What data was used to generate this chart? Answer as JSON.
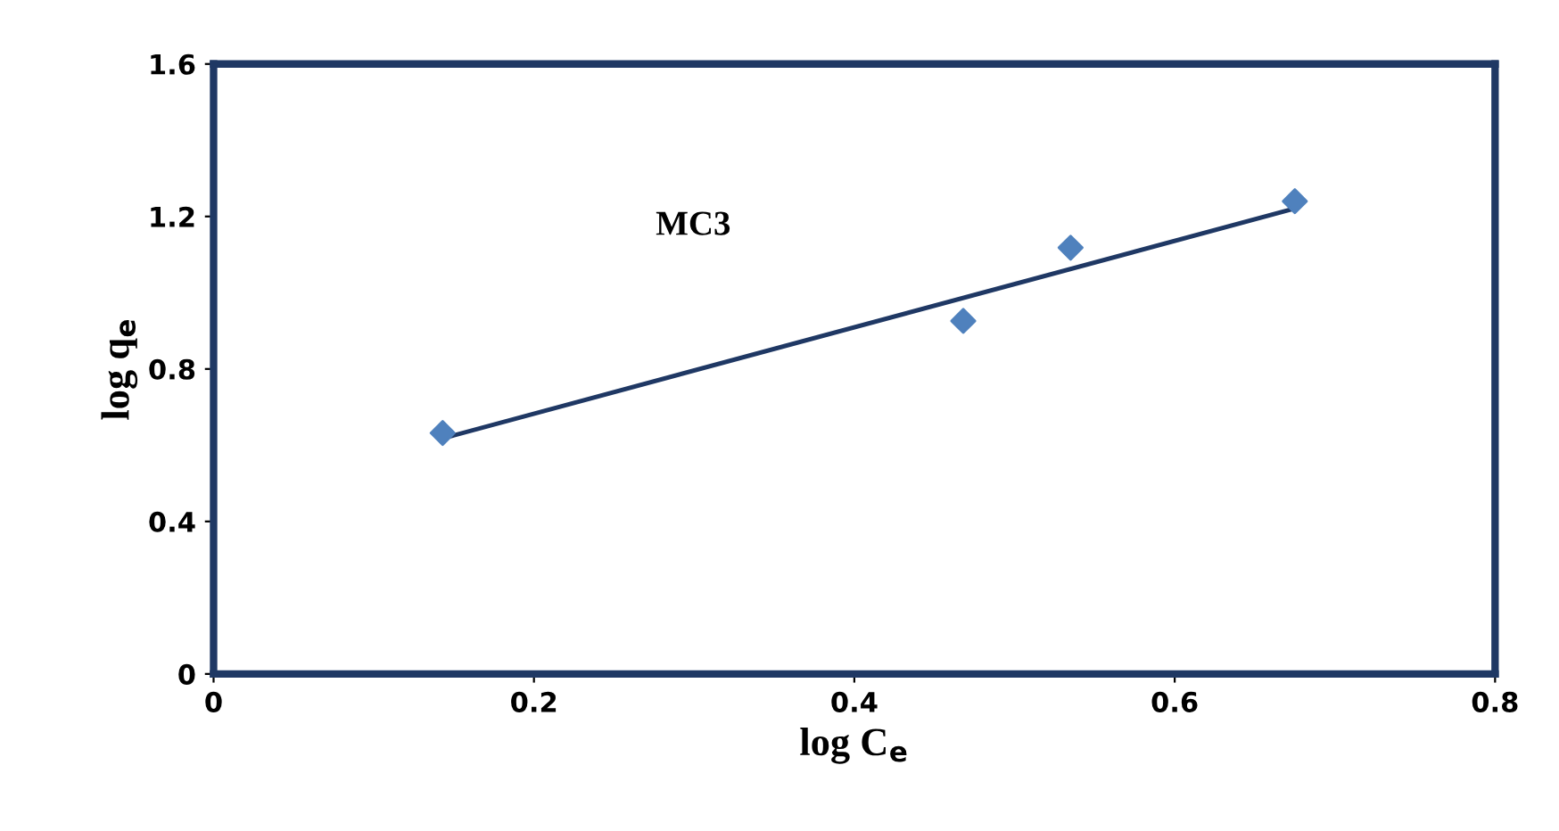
{
  "chart_data": {
    "type": "scatter",
    "xlabel": "log C$_{e}$",
    "ylabel": "log q$_{e}$",
    "annotations": [
      "MC3"
    ],
    "series": [
      {
        "color": "#4f81bd",
        "marker": "diamond",
        "x": [
          0.143,
          0.468,
          0.535,
          0.675
        ],
        "values": [
          0.632,
          0.926,
          1.118,
          1.24
        ]
      },
      {
        "type": "line",
        "color": "#1f3864",
        "marker": "none",
        "x": [
          0.143,
          0.675
        ],
        "values": [
          0.618,
          1.221
        ]
      }
    ],
    "xlim": [
      0,
      0.8
    ],
    "xticks": [
      0,
      0.2,
      0.4,
      0.6,
      0.8
    ],
    "ylim": [
      0,
      1.6
    ],
    "yticks": [
      0,
      0.4,
      0.8,
      1.2,
      1.6
    ],
    "grid": false,
    "legend": false
  }
}
